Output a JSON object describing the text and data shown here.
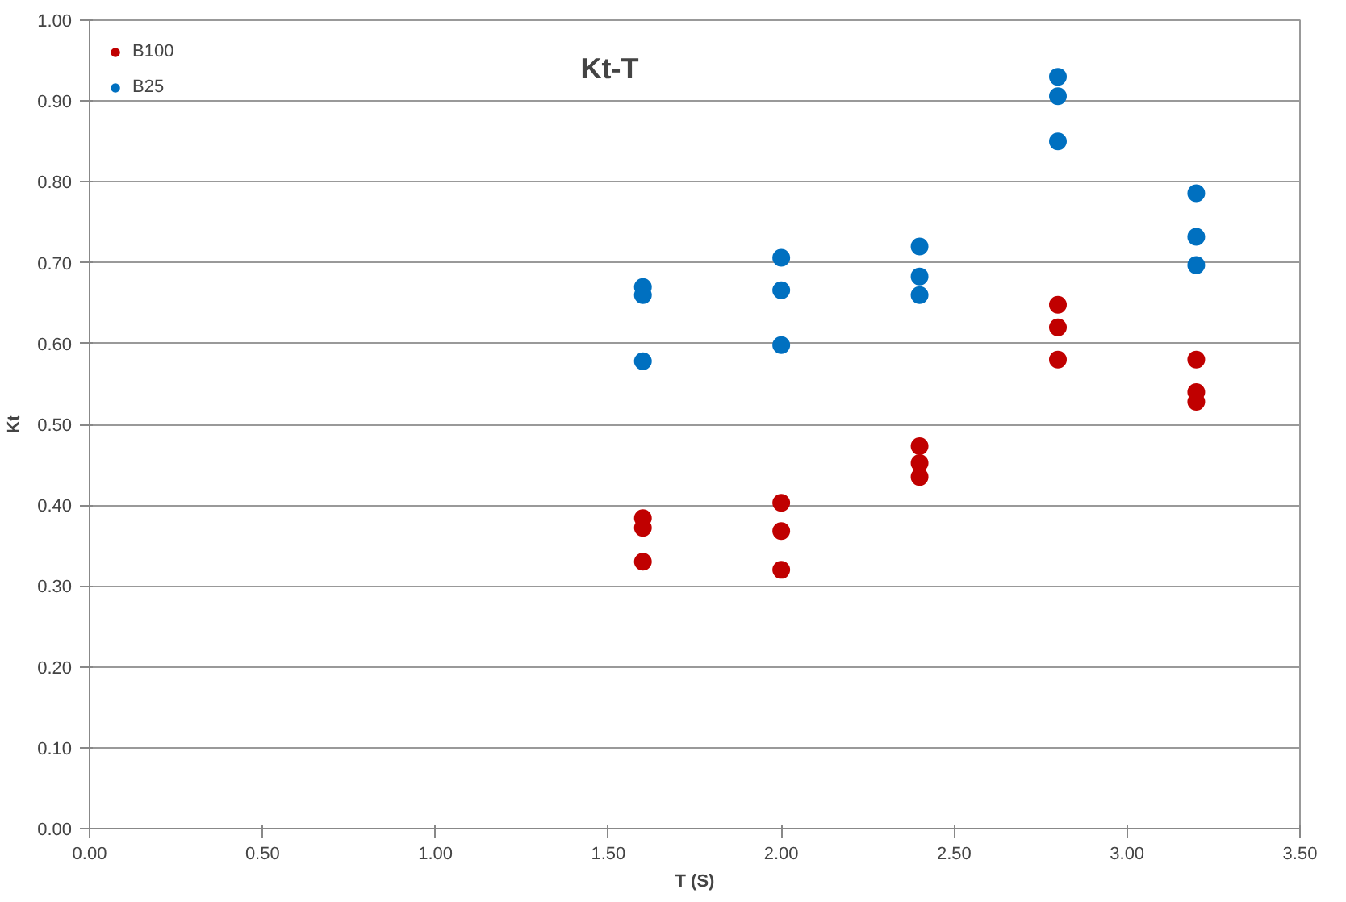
{
  "chart_data": {
    "type": "scatter",
    "title": "Kt-T",
    "xlabel": "T (S)",
    "ylabel": "Kt",
    "xlim": [
      0,
      3.5
    ],
    "ylim": [
      0,
      1
    ],
    "xticks": [
      {
        "value": 0,
        "label": "0.00"
      },
      {
        "value": 0.5,
        "label": "0.50"
      },
      {
        "value": 1,
        "label": "1.00"
      },
      {
        "value": 1.5,
        "label": "1.50"
      },
      {
        "value": 2,
        "label": "2.00"
      },
      {
        "value": 2.5,
        "label": "2.50"
      },
      {
        "value": 3,
        "label": "3.00"
      },
      {
        "value": 3.5,
        "label": "3.50"
      }
    ],
    "yticks": [
      {
        "value": 0,
        "label": "0.00"
      },
      {
        "value": 0.1,
        "label": "0.10"
      },
      {
        "value": 0.2,
        "label": "0.20"
      },
      {
        "value": 0.3,
        "label": "0.30"
      },
      {
        "value": 0.4,
        "label": "0.40"
      },
      {
        "value": 0.5,
        "label": "0.50"
      },
      {
        "value": 0.6,
        "label": "0.60"
      },
      {
        "value": 0.7,
        "label": "0.70"
      },
      {
        "value": 0.8,
        "label": "0.80"
      },
      {
        "value": 0.9,
        "label": "0.90"
      },
      {
        "value": 1,
        "label": "1.00"
      }
    ],
    "grid": "y",
    "legend": "top left",
    "marker": "circle",
    "series": [
      {
        "name": "B100",
        "color": "#c00000",
        "x": [
          1.6,
          1.6,
          1.6,
          2.0,
          2.0,
          2.0,
          2.4,
          2.4,
          2.4,
          2.8,
          2.8,
          2.8,
          3.2,
          3.2,
          3.2
        ],
        "values": [
          0.384,
          0.372,
          0.33,
          0.403,
          0.368,
          0.32,
          0.473,
          0.452,
          0.435,
          0.648,
          0.62,
          0.58,
          0.58,
          0.54,
          0.528
        ]
      },
      {
        "name": "B25",
        "color": "#0070c0",
        "x": [
          1.6,
          1.6,
          1.6,
          2.0,
          2.0,
          2.0,
          2.4,
          2.4,
          2.4,
          2.8,
          2.8,
          2.8,
          3.2,
          3.2,
          3.2
        ],
        "values": [
          0.67,
          0.66,
          0.578,
          0.706,
          0.666,
          0.598,
          0.72,
          0.683,
          0.66,
          0.93,
          0.906,
          0.85,
          0.786,
          0.732,
          0.697
        ]
      }
    ]
  }
}
